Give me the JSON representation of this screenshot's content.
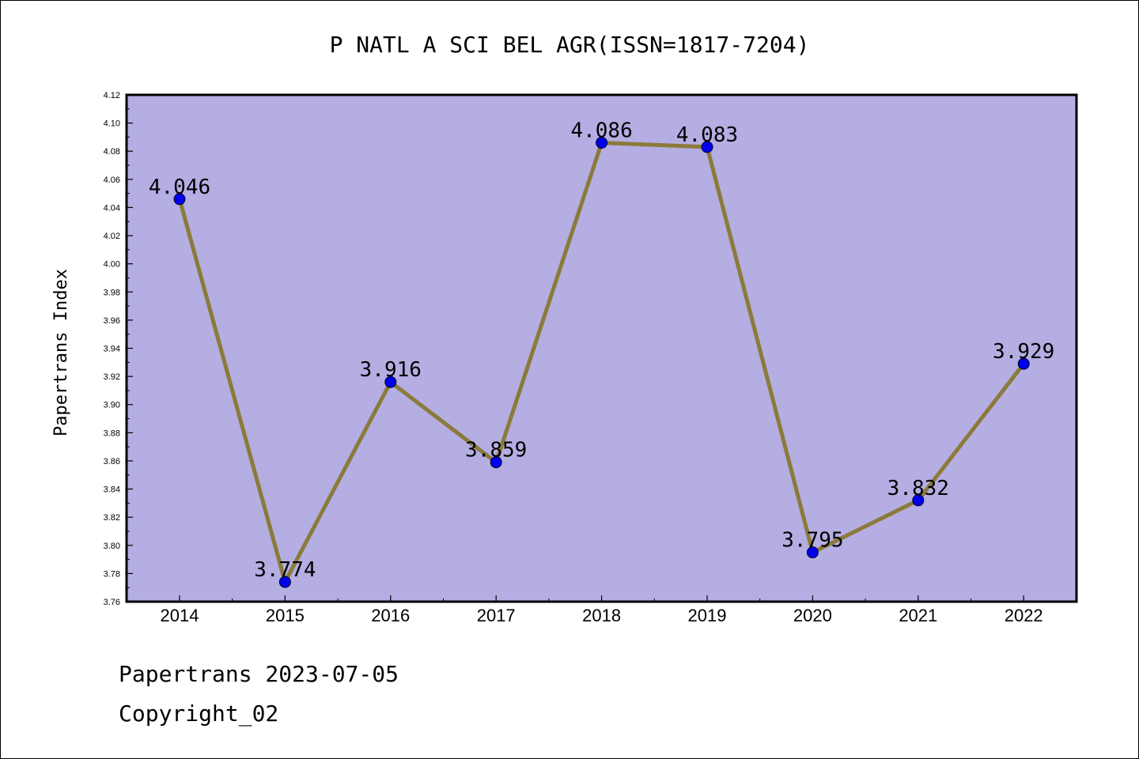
{
  "chart_data": {
    "type": "line",
    "title": "P NATL A SCI BEL AGR(ISSN=1817-7204)",
    "ylabel": "Papertrans Index",
    "xlabel": "",
    "categories": [
      "2014",
      "2015",
      "2016",
      "2017",
      "2018",
      "2019",
      "2020",
      "2021",
      "2022"
    ],
    "values": [
      4.046,
      3.774,
      3.916,
      3.859,
      4.086,
      4.083,
      3.795,
      3.832,
      3.929
    ],
    "labels": [
      "4.046",
      "3.774",
      "3.916",
      "3.859",
      "4.086",
      "4.083",
      "3.795",
      "3.832",
      "3.929"
    ],
    "ylim": [
      3.76,
      4.12
    ],
    "yticks": [
      "3.76",
      "3.78",
      "3.80",
      "3.82",
      "3.84",
      "3.86",
      "3.88",
      "3.90",
      "3.92",
      "3.94",
      "3.96",
      "3.98",
      "4.00",
      "4.02",
      "4.04",
      "4.06",
      "4.08",
      "4.10",
      "4.12"
    ],
    "grid": false,
    "colors": {
      "plot_background": "#b4aee2",
      "line": "#8b7a3a",
      "marker": "#0000ee"
    }
  },
  "footer": {
    "line1": "Papertrans 2023-07-05",
    "line2": "Copyright_02"
  }
}
